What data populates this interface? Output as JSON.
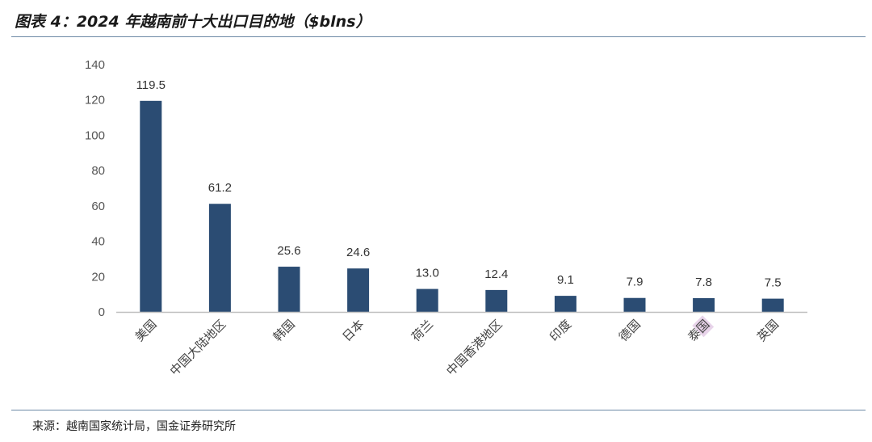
{
  "header": {
    "title": "图表 4：2024 年越南前十大出口目的地（$blns）"
  },
  "footer": {
    "source": "来源：越南国家统计局，国金证券研究所"
  },
  "colors": {
    "bar": "#2b4c73",
    "axis": "#bfbfbf",
    "rule": "#6d8aa6",
    "highlight": "#e8d4ea"
  },
  "chart_data": {
    "type": "bar",
    "title": "",
    "xlabel": "",
    "ylabel": "",
    "ylim": [
      0,
      140
    ],
    "yticks": [
      0,
      20,
      40,
      60,
      80,
      100,
      120,
      140
    ],
    "grid": false,
    "categories": [
      "美国",
      "中国大陆地区",
      "韩国",
      "日本",
      "荷兰",
      "中国香港地区",
      "印度",
      "德国",
      "泰国",
      "英国"
    ],
    "values": [
      119.5,
      61.2,
      25.6,
      24.6,
      13.0,
      12.4,
      9.1,
      7.9,
      7.8,
      7.5
    ],
    "value_labels": [
      "119.5",
      "61.2",
      "25.6",
      "24.6",
      "13.0",
      "12.4",
      "9.1",
      "7.9",
      "7.8",
      "7.5"
    ],
    "highlighted_category": "泰国"
  }
}
